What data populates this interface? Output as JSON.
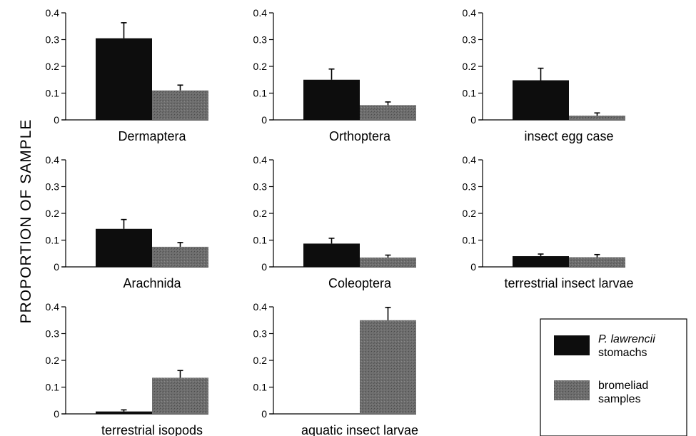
{
  "figure": {
    "ylabel": "PROPORTION OF SAMPLE"
  },
  "legend": {
    "entries": [
      {
        "line1": "P. lawrencii",
        "line2": "stomachs",
        "italic_line1": true,
        "color": "#0d0d0d"
      },
      {
        "line1": "bromeliad",
        "line2": "samples",
        "italic_line1": false,
        "color": "#666666"
      }
    ]
  },
  "chart_data": [
    {
      "type": "bar",
      "category": "Dermaptera",
      "ylim": [
        0,
        0.4
      ],
      "yticks": [
        "0",
        "0.1",
        "0.2",
        "0.3",
        "0.4"
      ],
      "series": [
        {
          "name": "P. lawrencii stomachs",
          "value": 0.305,
          "error": 0.058
        },
        {
          "name": "bromeliad samples",
          "value": 0.11,
          "error": 0.02
        }
      ]
    },
    {
      "type": "bar",
      "category": "Orthoptera",
      "ylim": [
        0,
        0.4
      ],
      "yticks": [
        "0",
        "0.1",
        "0.2",
        "0.3",
        "0.4"
      ],
      "series": [
        {
          "name": "P. lawrencii stomachs",
          "value": 0.15,
          "error": 0.04
        },
        {
          "name": "bromeliad samples",
          "value": 0.055,
          "error": 0.012
        }
      ]
    },
    {
      "type": "bar",
      "category": "insect egg case",
      "ylim": [
        0,
        0.4
      ],
      "yticks": [
        "0",
        "0.1",
        "0.2",
        "0.3",
        "0.4"
      ],
      "series": [
        {
          "name": "P. lawrencii stomachs",
          "value": 0.148,
          "error": 0.045
        },
        {
          "name": "bromeliad samples",
          "value": 0.016,
          "error": 0.01
        }
      ]
    },
    {
      "type": "bar",
      "category": "Arachnida",
      "ylim": [
        0,
        0.4
      ],
      "yticks": [
        "0",
        "0.1",
        "0.2",
        "0.3",
        "0.4"
      ],
      "series": [
        {
          "name": "P. lawrencii stomachs",
          "value": 0.142,
          "error": 0.035
        },
        {
          "name": "bromeliad samples",
          "value": 0.075,
          "error": 0.016
        }
      ]
    },
    {
      "type": "bar",
      "category": "Coleoptera",
      "ylim": [
        0,
        0.4
      ],
      "yticks": [
        "0",
        "0.1",
        "0.2",
        "0.3",
        "0.4"
      ],
      "series": [
        {
          "name": "P. lawrencii stomachs",
          "value": 0.087,
          "error": 0.02
        },
        {
          "name": "bromeliad samples",
          "value": 0.035,
          "error": 0.009
        }
      ]
    },
    {
      "type": "bar",
      "category": "terrestrial insect larvae",
      "ylim": [
        0,
        0.4
      ],
      "yticks": [
        "0",
        "0.1",
        "0.2",
        "0.3",
        "0.4"
      ],
      "series": [
        {
          "name": "P. lawrencii stomachs",
          "value": 0.04,
          "error": 0.008
        },
        {
          "name": "bromeliad samples",
          "value": 0.036,
          "error": 0.01
        }
      ]
    },
    {
      "type": "bar",
      "category": "terrestrial isopods",
      "ylim": [
        0,
        0.4
      ],
      "yticks": [
        "0",
        "0.1",
        "0.2",
        "0.3",
        "0.4"
      ],
      "series": [
        {
          "name": "P. lawrencii stomachs",
          "value": 0.009,
          "error": 0.006
        },
        {
          "name": "bromeliad samples",
          "value": 0.135,
          "error": 0.027
        }
      ]
    },
    {
      "type": "bar",
      "category": "aquatic insect larvae",
      "ylim": [
        0,
        0.4
      ],
      "yticks": [
        "0",
        "0.1",
        "0.2",
        "0.3",
        "0.4"
      ],
      "series": [
        {
          "name": "P. lawrencii stomachs",
          "value": 0.0,
          "error": 0.0
        },
        {
          "name": "bromeliad samples",
          "value": 0.35,
          "error": 0.048
        }
      ]
    }
  ]
}
